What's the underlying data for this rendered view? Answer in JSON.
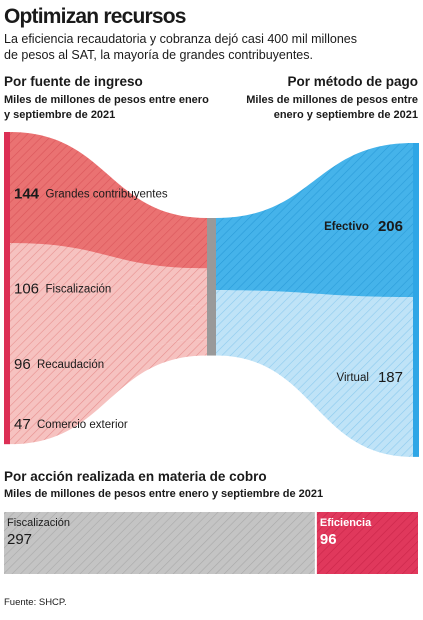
{
  "title": "Optimizan recursos",
  "subtitle_line1": "La eficiencia recaudatoria y cobranza dejó casi 400 mil millones",
  "subtitle_line2": "de pesos al SAT, la mayoría de grandes contribuyentes.",
  "left_header": "Por fuente de ingreso",
  "left_sub_line1": "Miles de millones de pesos entre enero",
  "left_sub_line2": "y septiembre de 2021",
  "right_header": "Por método de pago",
  "right_sub_line1": "Miles de millones de pesos entre",
  "right_sub_line2": "enero y septiembre de 2021",
  "bottom_header": "Por acción realizada en materia de cobro",
  "bottom_sub": "Miles de millones de pesos entre enero y septiembre de 2021",
  "source": "Fuente: SHCP.",
  "colors": {
    "red": "#dc2f55",
    "red_light": "#f4b3b3",
    "blue": "#2ea6e6",
    "blue_light": "#b3ddf5",
    "gray": "#b3b3b3",
    "gray_mid": "#999999"
  },
  "chart_data": [
    {
      "type": "sankey",
      "sources": [
        {
          "label": "Grandes contribuyentes",
          "value": 144
        },
        {
          "label": "Fiscalización",
          "value": 106
        },
        {
          "label": "Recaudación",
          "value": 96
        },
        {
          "label": "Comercio exterior",
          "value": 47
        }
      ],
      "targets": [
        {
          "label": "Efectivo",
          "value": 206
        },
        {
          "label": "Virtual",
          "value": 187
        }
      ]
    },
    {
      "type": "bar",
      "orientation": "horizontal-stacked",
      "categories": [
        "Fiscalización",
        "Eficiencia"
      ],
      "values": [
        297,
        96
      ]
    }
  ]
}
